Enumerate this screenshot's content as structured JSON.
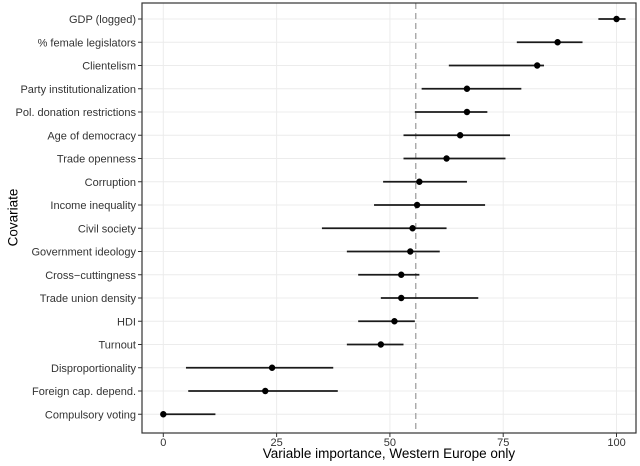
{
  "figure": {
    "x_axis_title": "Variable importance, Western Europe only",
    "y_axis_title": "Covariate"
  },
  "chart_data": {
    "type": "scatter",
    "variant": "dot-with-interval (variable importance / forest plot), horizontal intervals, no caps",
    "title": "",
    "xlabel": "Variable importance, Western Europe only",
    "ylabel": "Covariate",
    "xlim": [
      -4.7,
      104.3
    ],
    "x_ticks": [
      0,
      25,
      50,
      75,
      100
    ],
    "grid": "major gridlines only, light gray, horizontal line per category and vertical line per x tick",
    "legend": "none",
    "reference_line": {
      "x": 55.7,
      "linetype": "dashed",
      "color": "#a8a8a8"
    },
    "categories": [
      "GDP (logged)",
      "% female legislators",
      "Clientelism",
      "Party institutionalization",
      "Pol. donation restrictions",
      "Age of democracy",
      "Trade openness",
      "Corruption",
      "Income inequality",
      "Civil society",
      "Government ideology",
      "Cross−cuttingness",
      "Trade union density",
      "HDI",
      "Turnout",
      "Disproportionality",
      "Foreign cap. depend.",
      "Compulsory voting"
    ],
    "series": [
      {
        "name": "Variable importance (point estimate with interval)",
        "values": [
          100,
          87,
          82.5,
          67,
          67,
          65.5,
          62.5,
          56.5,
          56,
          55,
          54.5,
          52.5,
          52.5,
          51,
          48,
          24,
          22.5,
          0
        ],
        "ci_low": [
          96,
          78,
          63,
          57,
          55.5,
          53,
          53,
          48.5,
          46.5,
          35,
          40.5,
          43,
          48,
          43,
          40.5,
          5,
          5.5,
          0
        ],
        "ci_high": [
          102,
          92.5,
          84,
          79,
          71.5,
          76.5,
          75.5,
          67,
          71,
          62.5,
          61,
          56.5,
          69.5,
          55.5,
          53,
          37.5,
          38.5,
          11.5
        ]
      }
    ],
    "colors": {
      "panel_bg": "#ffffff",
      "gridline": "#ececec",
      "border": "#333333",
      "interval": "#1a1a1a",
      "point": "#000000",
      "tick_text": "#333333",
      "title_text": "#000000"
    }
  }
}
